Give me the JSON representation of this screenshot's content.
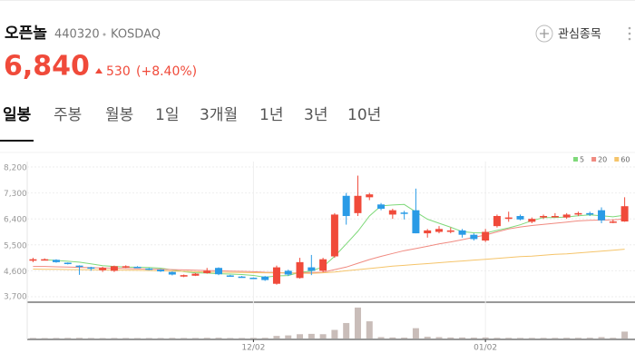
{
  "header": {
    "name": "오픈놀",
    "code": "440320",
    "market": "KOSDAQ",
    "watch": "관심종목",
    "price": "6,840",
    "change": "530",
    "change_pct": "(+8.40%)"
  },
  "tabs": [
    "일봉",
    "주봉",
    "월봉",
    "1일",
    "3개월",
    "1년",
    "3년",
    "10년"
  ],
  "chart_data": {
    "type": "candlestick",
    "categories": [
      null,
      null,
      null,
      null,
      null,
      null,
      null,
      null,
      null,
      null,
      null,
      null,
      null,
      null,
      null,
      null,
      null,
      null,
      null,
      "12/02",
      null,
      null,
      null,
      null,
      null,
      null,
      null,
      null,
      null,
      null,
      null,
      null,
      null,
      null,
      null,
      null,
      null,
      null,
      null,
      "01/02",
      null,
      null,
      null,
      null,
      null,
      null,
      null,
      null,
      null,
      null,
      null,
      null
    ],
    "open": [
      4950,
      4990,
      4980,
      4880,
      4780,
      4720,
      4620,
      4600,
      4720,
      4740,
      4680,
      4640,
      4560,
      4400,
      4430,
      4520,
      4700,
      4440,
      4400,
      4360,
      4400,
      4150,
      4600,
      4350,
      4720,
      4600,
      5100,
      7200,
      6600,
      7150,
      6900,
      6550,
      6620,
      6700,
      5900,
      5950,
      5950,
      6000,
      5850,
      5650,
      6150,
      6400,
      6500,
      6300,
      6450,
      6500,
      6450,
      6550,
      6600,
      6700,
      6280,
      6310
    ],
    "high": [
      5050,
      5030,
      5000,
      4890,
      4790,
      4740,
      4740,
      4780,
      4790,
      4760,
      4700,
      4660,
      4580,
      4470,
      4520,
      4700,
      4720,
      4460,
      4420,
      4370,
      4420,
      4780,
      4640,
      5050,
      5150,
      5050,
      6600,
      7300,
      7900,
      7300,
      6950,
      6750,
      6680,
      7450,
      6050,
      6150,
      6100,
      6050,
      5900,
      6050,
      6550,
      6650,
      6550,
      6450,
      6550,
      6600,
      6600,
      6650,
      6650,
      6800,
      6380,
      7150
    ],
    "low": [
      4900,
      4970,
      4880,
      4820,
      4460,
      4600,
      4560,
      4560,
      4700,
      4700,
      4620,
      4560,
      4440,
      4380,
      4420,
      4500,
      4450,
      4390,
      4360,
      4320,
      4250,
      4120,
      4420,
      4330,
      4450,
      4550,
      5050,
      6200,
      6500,
      7050,
      6700,
      6400,
      6380,
      5900,
      5750,
      5900,
      5900,
      5750,
      5650,
      5600,
      6100,
      6300,
      6350,
      6250,
      6400,
      6450,
      6400,
      6500,
      6500,
      6250,
      6250,
      6300
    ],
    "close": [
      5000,
      5000,
      4900,
      4840,
      4760,
      4690,
      4700,
      4760,
      4760,
      4710,
      4640,
      4580,
      4470,
      4450,
      4500,
      4600,
      4480,
      4410,
      4370,
      4340,
      4280,
      4720,
      4470,
      4900,
      4600,
      5000,
      6550,
      6500,
      7200,
      7250,
      6750,
      6700,
      6600,
      5900,
      6000,
      6050,
      6000,
      5850,
      5700,
      5950,
      6500,
      6450,
      6380,
      6400,
      6500,
      6500,
      6550,
      6600,
      6550,
      6350,
      6310,
      6840
    ],
    "volume": {
      "color": "#c9bdb9",
      "ylim": [
        0,
        1900
      ],
      "values": [
        30,
        25,
        30,
        35,
        40,
        30,
        25,
        30,
        30,
        25,
        30,
        30,
        35,
        30,
        30,
        40,
        45,
        30,
        30,
        35,
        40,
        150,
        180,
        250,
        270,
        250,
        500,
        900,
        1800,
        1000,
        80,
        60,
        50,
        600,
        100,
        80,
        60,
        60,
        50,
        60,
        40,
        40,
        35,
        35,
        35,
        35,
        40,
        40,
        45,
        80,
        40,
        400
      ]
    },
    "series": [
      {
        "name": "5",
        "color": "#7fd97a",
        "values": [
          null,
          4980,
          4960,
          4930,
          4900,
          4838,
          4778,
          4750,
          4732,
          4724,
          4714,
          4690,
          4632,
          4570,
          4530,
          4520,
          4500,
          4488,
          4472,
          4440,
          4376,
          4424,
          4436,
          4542,
          4594,
          4738,
          5104,
          5530,
          5970,
          6500,
          6850,
          6880,
          6900,
          6640,
          6390,
          6250,
          6110,
          5960,
          5920,
          5910,
          6000,
          6090,
          6196,
          6336,
          6446,
          6446,
          6466,
          6510,
          6540,
          6510,
          6472,
          6530
        ]
      },
      {
        "name": "20",
        "color": "#f08a80",
        "values": [
          4750,
          4750,
          4740,
          4730,
          4720,
          4710,
          4700,
          4690,
          4680,
          4670,
          4660,
          4650,
          4640,
          4630,
          4620,
          4610,
          4600,
          4590,
          4580,
          4570,
          4550,
          4540,
          4520,
          4530,
          4540,
          4550,
          4640,
          4730,
          4860,
          4990,
          5100,
          5200,
          5300,
          5370,
          5450,
          5530,
          5600,
          5680,
          5760,
          5840,
          5950,
          6050,
          6120,
          6170,
          6210,
          6250,
          6290,
          6330,
          6350,
          6360,
          6370,
          6400
        ]
      },
      {
        "name": "60",
        "color": "#f5c46a",
        "values": [
          4660,
          4655,
          4650,
          4645,
          4640,
          4635,
          4630,
          4625,
          4620,
          4615,
          4610,
          4600,
          4590,
          4580,
          4570,
          4560,
          4550,
          4545,
          4540,
          4535,
          4530,
          4525,
          4520,
          4515,
          4510,
          4530,
          4560,
          4600,
          4640,
          4680,
          4720,
          4760,
          4790,
          4820,
          4850,
          4880,
          4910,
          4940,
          4970,
          5000,
          5030,
          5060,
          5090,
          5110,
          5140,
          5170,
          5190,
          5220,
          5250,
          5280,
          5310,
          5350
        ]
      }
    ],
    "legend": "upper right",
    "up_color": "#f04a3a",
    "down_color": "#2a9be6",
    "ylim": [
      3700,
      8200
    ],
    "yticks": [
      {
        "value": 3700,
        "label": "3,700"
      },
      {
        "value": 4600,
        "label": "4,600"
      },
      {
        "value": 5500,
        "label": "5,500"
      },
      {
        "value": 6400,
        "label": "6,400"
      },
      {
        "value": 7300,
        "label": "7,300"
      },
      {
        "value": 8200,
        "label": "8,200"
      }
    ],
    "grid": true
  }
}
